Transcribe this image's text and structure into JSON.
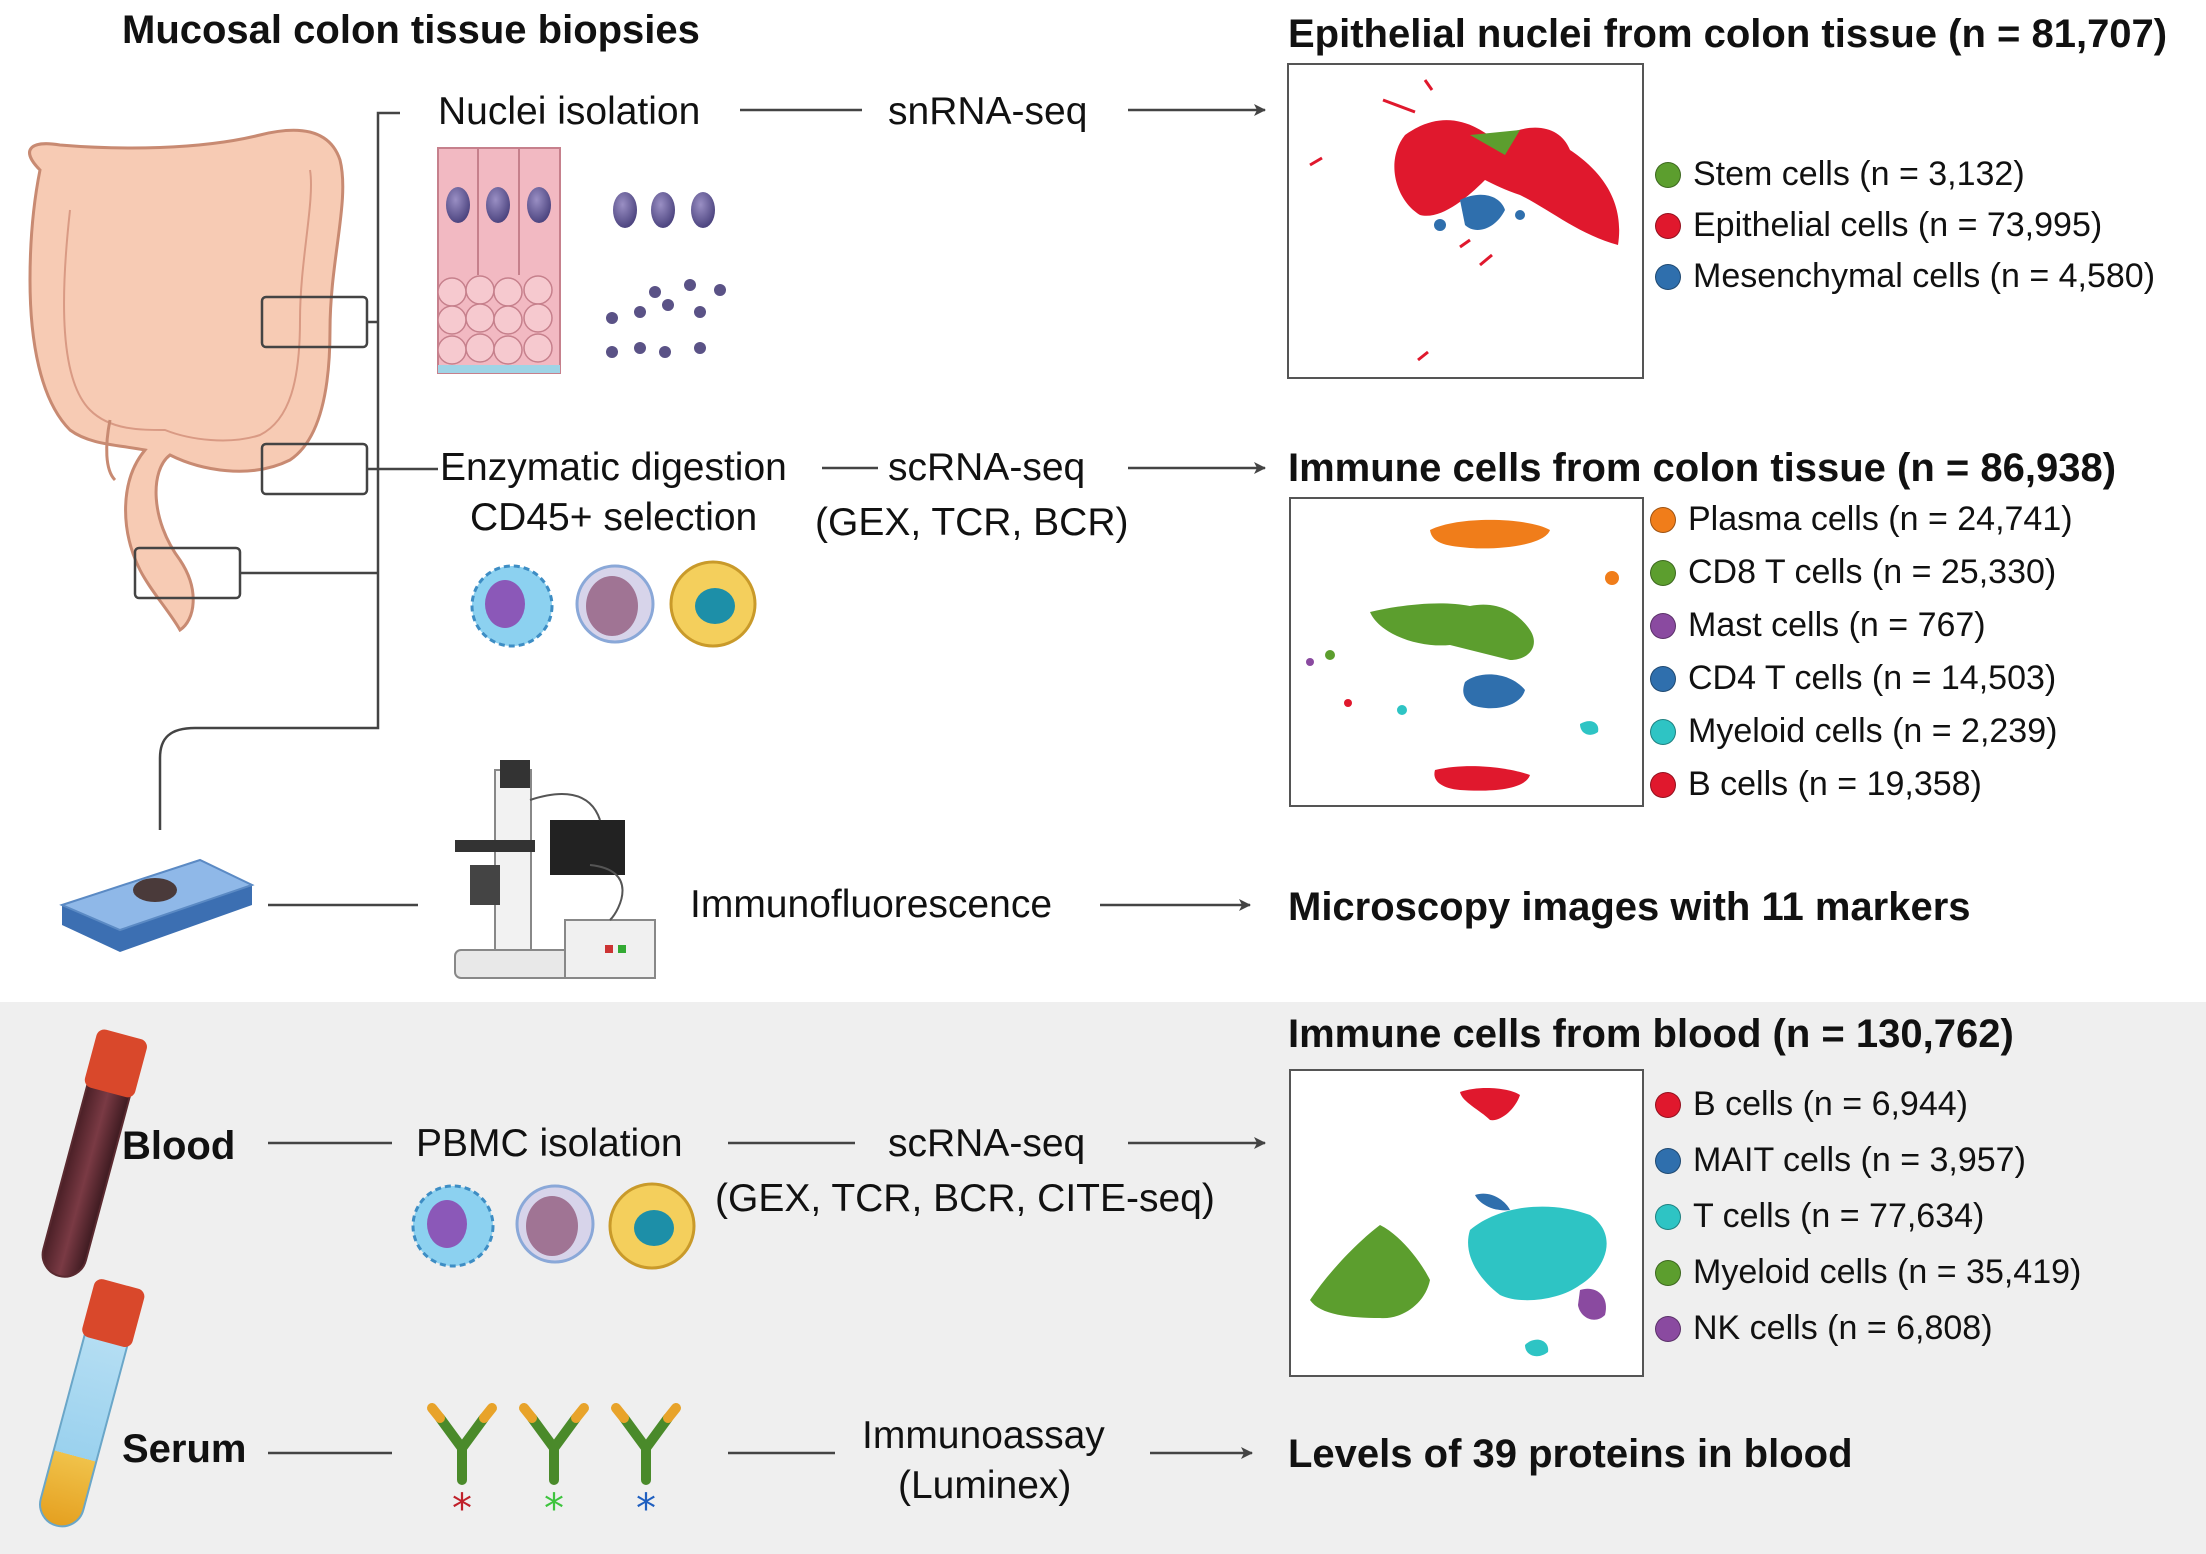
{
  "title": "Mucosal colon tissue biopsies",
  "tissue": {
    "nuclei_step": "Nuclei isolation",
    "nuclei_assay": "snRNA-seq",
    "digest_step_1": "Enzymatic digestion",
    "digest_step_2": "CD45+ selection",
    "digest_assay_1": "scRNA-seq",
    "digest_assay_2": "(GEX,  TCR,  BCR)",
    "if_assay": "Immunofluorescence"
  },
  "blood": {
    "label": "Blood",
    "step": "PBMC isolation",
    "assay_1": "scRNA-seq",
    "assay_2": "(GEX,  TCR,  BCR, CITE-seq)"
  },
  "serum": {
    "label": "Serum",
    "assay_1": "Immunoassay",
    "assay_2": "(Luminex)"
  },
  "outputs": {
    "epithelial": {
      "title": "Epithelial nuclei from colon tissue (n = 81,707)",
      "legend": [
        {
          "label": "Stem cells (n = 3,132)",
          "color": "#5c9e2e"
        },
        {
          "label": "Epithelial cells (n = 73,995)",
          "color": "#e0182d"
        },
        {
          "label": "Mesenchymal cells (n = 4,580)",
          "color": "#2f6fad"
        }
      ]
    },
    "immune_tissue": {
      "title": "Immune cells from colon tissue (n = 86,938)",
      "legend": [
        {
          "label": "Plasma cells (n = 24,741)",
          "color": "#f07d1a"
        },
        {
          "label": "CD8 T cells (n = 25,330)",
          "color": "#5c9e2e"
        },
        {
          "label": "Mast cells (n = 767)",
          "color": "#8a4aa0"
        },
        {
          "label": "CD4 T cells (n = 14,503)",
          "color": "#2f6fad"
        },
        {
          "label": "Myeloid cells (n = 2,239)",
          "color": "#2ec4c4"
        },
        {
          "label": "B cells (n = 19,358)",
          "color": "#e0182d"
        }
      ]
    },
    "microscopy": {
      "title": "Microscopy images with 11 markers"
    },
    "immune_blood": {
      "title": "Immune cells from blood (n = 130,762)",
      "legend": [
        {
          "label": "B cells (n = 6,944)",
          "color": "#e0182d"
        },
        {
          "label": "MAIT cells (n = 3,957)",
          "color": "#2f6fad"
        },
        {
          "label": "T cells (n = 77,634)",
          "color": "#2ec4c4"
        },
        {
          "label": "Myeloid cells (n = 35,419)",
          "color": "#5c9e2e"
        },
        {
          "label": "NK cells (n = 6,808)",
          "color": "#8a4aa0"
        }
      ]
    },
    "proteins": {
      "title": "Levels of 39 proteins in blood"
    }
  }
}
